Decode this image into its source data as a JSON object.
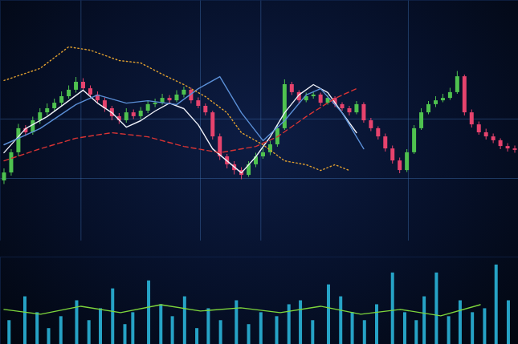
{
  "chart_data": [
    {
      "type": "candlestick",
      "x": [
        0,
        1,
        2,
        3,
        4,
        5,
        6,
        7,
        8,
        9,
        10,
        11,
        12,
        13,
        14,
        15,
        16,
        17,
        18,
        19,
        20,
        21,
        22,
        23,
        24,
        25,
        26,
        27,
        28,
        29,
        30,
        31,
        32,
        33,
        34,
        35,
        36,
        37,
        38,
        39,
        40,
        41,
        42,
        43,
        44,
        45,
        46,
        47,
        48,
        49,
        50,
        51,
        52,
        53,
        54,
        55,
        56,
        57,
        58,
        59,
        60,
        61,
        62,
        63,
        64,
        65,
        66,
        67,
        68,
        69,
        70,
        71
      ],
      "open": [
        25.0,
        28.3,
        36.7,
        46.7,
        45.0,
        50.0,
        53.3,
        55.0,
        57.3,
        60.0,
        62.7,
        66.0,
        63.3,
        60.7,
        58.3,
        55.0,
        51.7,
        50.0,
        53.3,
        51.7,
        54.0,
        56.7,
        57.3,
        59.3,
        58.3,
        60.7,
        62.7,
        58.3,
        56.0,
        53.3,
        43.3,
        35.0,
        31.7,
        29.3,
        27.3,
        31.7,
        35.0,
        36.7,
        40.0,
        46.7,
        65.0,
        61.7,
        58.3,
        60.0,
        60.7,
        57.3,
        59.3,
        56.7,
        55.0,
        53.3,
        56.7,
        50.0,
        46.7,
        43.3,
        38.3,
        33.3,
        29.3,
        36.7,
        46.7,
        53.3,
        56.7,
        58.3,
        59.3,
        61.7,
        68.3,
        53.3,
        48.3,
        45.0,
        43.3,
        41.7,
        39.3,
        38.3
      ],
      "high": [
        30.0,
        38.0,
        48.5,
        48.0,
        51.5,
        55.0,
        57.0,
        59.0,
        62.0,
        64.5,
        68.0,
        67.5,
        64.5,
        62.0,
        59.5,
        56.0,
        53.0,
        55.0,
        54.5,
        55.5,
        58.0,
        59.0,
        61.0,
        60.5,
        62.5,
        64.0,
        63.5,
        59.5,
        57.0,
        54.0,
        44.5,
        36.0,
        33.0,
        30.5,
        33.0,
        36.5,
        38.5,
        41.5,
        48.0,
        67.0,
        66.0,
        62.5,
        61.5,
        62.0,
        61.5,
        60.5,
        60.0,
        57.5,
        56.0,
        58.0,
        57.5,
        51.0,
        47.5,
        44.5,
        39.5,
        34.5,
        38.0,
        48.0,
        55.0,
        58.0,
        60.0,
        61.0,
        63.5,
        70.5,
        69.0,
        54.5,
        49.5,
        46.5,
        44.5,
        42.5,
        40.5,
        39.5
      ],
      "low": [
        23.5,
        27.0,
        35.0,
        43.5,
        44.0,
        48.5,
        52.0,
        54.0,
        56.0,
        59.0,
        61.5,
        62.0,
        59.0,
        57.0,
        53.5,
        50.0,
        48.5,
        49.0,
        50.5,
        50.5,
        53.0,
        55.5,
        56.5,
        57.0,
        57.5,
        59.5,
        57.0,
        55.0,
        52.0,
        42.0,
        33.5,
        30.0,
        27.5,
        25.5,
        26.5,
        30.5,
        34.0,
        35.5,
        39.0,
        46.0,
        60.5,
        57.0,
        57.5,
        59.0,
        56.0,
        56.5,
        55.5,
        54.0,
        52.0,
        52.5,
        49.0,
        45.5,
        42.0,
        37.0,
        32.0,
        28.0,
        28.5,
        36.0,
        46.0,
        52.5,
        55.5,
        57.5,
        58.5,
        61.0,
        52.0,
        47.0,
        44.0,
        42.0,
        40.5,
        38.0,
        37.0,
        36.5
      ],
      "close": [
        28.3,
        36.7,
        46.7,
        45.0,
        50.0,
        53.3,
        55.0,
        57.3,
        60.0,
        62.7,
        66.0,
        63.3,
        60.7,
        58.3,
        55.0,
        51.7,
        50.0,
        53.3,
        51.7,
        54.0,
        56.7,
        57.3,
        59.3,
        58.3,
        60.7,
        62.7,
        58.3,
        56.0,
        53.3,
        43.3,
        35.0,
        31.7,
        29.3,
        27.3,
        31.7,
        35.0,
        36.7,
        40.0,
        46.7,
        65.0,
        61.7,
        58.3,
        60.0,
        60.7,
        57.3,
        59.3,
        56.7,
        55.0,
        53.3,
        56.7,
        50.0,
        46.7,
        43.3,
        38.3,
        33.3,
        29.3,
        36.7,
        46.7,
        53.3,
        56.7,
        58.3,
        59.3,
        61.7,
        68.3,
        53.3,
        48.3,
        45.0,
        43.3,
        41.7,
        39.3,
        38.3,
        37.7
      ],
      "colors": [
        "#4fc24f",
        "#4fc24f",
        "#4fc24f",
        "#e6436d",
        "#4fc24f",
        "#4fc24f",
        "#4fc24f",
        "#4fc24f",
        "#4fc24f",
        "#4fc24f",
        "#4fc24f",
        "#e6436d",
        "#e6436d",
        "#e6436d",
        "#e6436d",
        "#e6436d",
        "#e6436d",
        "#4fc24f",
        "#e6436d",
        "#4fc24f",
        "#4fc24f",
        "#4fc24f",
        "#4fc24f",
        "#e6436d",
        "#4fc24f",
        "#4fc24f",
        "#e6436d",
        "#e6436d",
        "#e6436d",
        "#e6436d",
        "#e6436d",
        "#e6436d",
        "#e6436d",
        "#e6436d",
        "#4fc24f",
        "#4fc24f",
        "#4fc24f",
        "#4fc24f",
        "#4fc24f",
        "#4fc24f",
        "#e6436d",
        "#e6436d",
        "#4fc24f",
        "#4fc24f",
        "#e6436d",
        "#4fc24f",
        "#e6436d",
        "#e6436d",
        "#e6436d",
        "#4fc24f",
        "#e6436d",
        "#e6436d",
        "#e6436d",
        "#e6436d",
        "#e6436d",
        "#e6436d",
        "#4fc24f",
        "#4fc24f",
        "#4fc24f",
        "#4fc24f",
        "#4fc24f",
        "#4fc24f",
        "#4fc24f",
        "#4fc24f",
        "#e6436d",
        "#e6436d",
        "#e6436d",
        "#e6436d",
        "#e6436d",
        "#e6436d",
        "#e6436d",
        "#e6436d"
      ],
      "series": [
        {
          "type": "line",
          "color": "#eef0f8",
          "line_style": "solid",
          "x": [
            0,
            3,
            6,
            9,
            11,
            13,
            15,
            17,
            19,
            21,
            23,
            25,
            27,
            29,
            31,
            33,
            35,
            37,
            39,
            41,
            43,
            45,
            47,
            49
          ],
          "values": [
            36.7,
            46.7,
            51.7,
            58.3,
            62.7,
            57.3,
            53.3,
            47.3,
            50.0,
            54.0,
            57.3,
            55.0,
            48.3,
            38.3,
            33.3,
            28.3,
            35.0,
            43.3,
            53.3,
            60.7,
            65.0,
            61.7,
            53.3,
            45.0
          ]
        },
        {
          "type": "line",
          "color": "#5b8fd6",
          "line_style": "solid",
          "x": [
            0,
            5,
            10,
            13,
            17,
            20,
            24,
            27,
            30,
            33,
            36,
            39,
            42,
            44,
            47,
            50
          ],
          "values": [
            40.0,
            46.7,
            56.7,
            60.7,
            57.3,
            58.3,
            56.7,
            63.3,
            68.3,
            53.3,
            41.7,
            50.0,
            60.7,
            63.3,
            53.3,
            38.3
          ]
        },
        {
          "type": "line",
          "color": "#e0a030",
          "line_style": "dotted",
          "x": [
            0,
            5,
            9,
            12,
            16,
            19,
            22,
            25,
            28,
            31,
            33,
            36,
            39,
            42,
            44,
            46,
            48
          ],
          "values": [
            66.7,
            71.7,
            80.7,
            79.3,
            75.0,
            74.0,
            69.3,
            65.0,
            60.0,
            53.3,
            45.0,
            40.0,
            33.3,
            31.7,
            29.3,
            31.7,
            29.3
          ]
        },
        {
          "type": "line",
          "color": "#d83434",
          "line_style": "dashed",
          "x": [
            0,
            5,
            10,
            15,
            20,
            25,
            30,
            35,
            38,
            42,
            46,
            49
          ],
          "values": [
            33.3,
            38.3,
            42.7,
            45.0,
            43.3,
            39.3,
            36.7,
            39.3,
            43.3,
            51.7,
            59.3,
            63.3
          ]
        }
      ],
      "xlim": [
        -0.5,
        71.5
      ],
      "ylim": [
        0,
        100
      ],
      "xticks": [
        10.7,
        27.3,
        35.7,
        56.2
      ],
      "yticks": [
        26,
        50.7
      ],
      "grid": true,
      "tick_labels": false
    },
    {
      "type": "bar",
      "x": [
        0.7,
        2.9,
        4.6,
        6.2,
        7.9,
        10.1,
        11.8,
        13.4,
        15.1,
        16.8,
        17.9,
        20.1,
        21.8,
        23.4,
        25.1,
        26.8,
        28.4,
        30.1,
        32.3,
        34.0,
        35.7,
        37.9,
        39.6,
        41.2,
        42.9,
        45.1,
        46.8,
        48.4,
        50.1,
        51.8,
        54.0,
        55.7,
        57.3,
        58.4,
        60.1,
        61.8,
        63.4,
        65.1,
        66.8,
        68.4,
        70.1
      ],
      "values": [
        30,
        60,
        40,
        20,
        35,
        55,
        30,
        45,
        70,
        25,
        40,
        80,
        50,
        35,
        60,
        20,
        45,
        30,
        55,
        25,
        40,
        35,
        50,
        55,
        30,
        75,
        60,
        40,
        30,
        50,
        90,
        40,
        30,
        60,
        90,
        35,
        55,
        40,
        45,
        100,
        55
      ],
      "color": "#2ab4d8",
      "series": [
        {
          "type": "line",
          "color": "#7ed63c",
          "line_style": "solid",
          "x": [
            0,
            5.1,
            10.7,
            16.2,
            21.8,
            27.3,
            32.9,
            38.4,
            44,
            49.6,
            55.1,
            60.7,
            66.2
          ],
          "values": [
            44,
            38,
            48,
            40,
            50,
            42,
            46,
            40,
            48,
            38,
            44,
            36,
            50
          ]
        }
      ],
      "xlim": [
        -0.5,
        71.5
      ],
      "ylim": [
        0,
        110
      ],
      "grid": false,
      "tick_labels": false
    }
  ]
}
